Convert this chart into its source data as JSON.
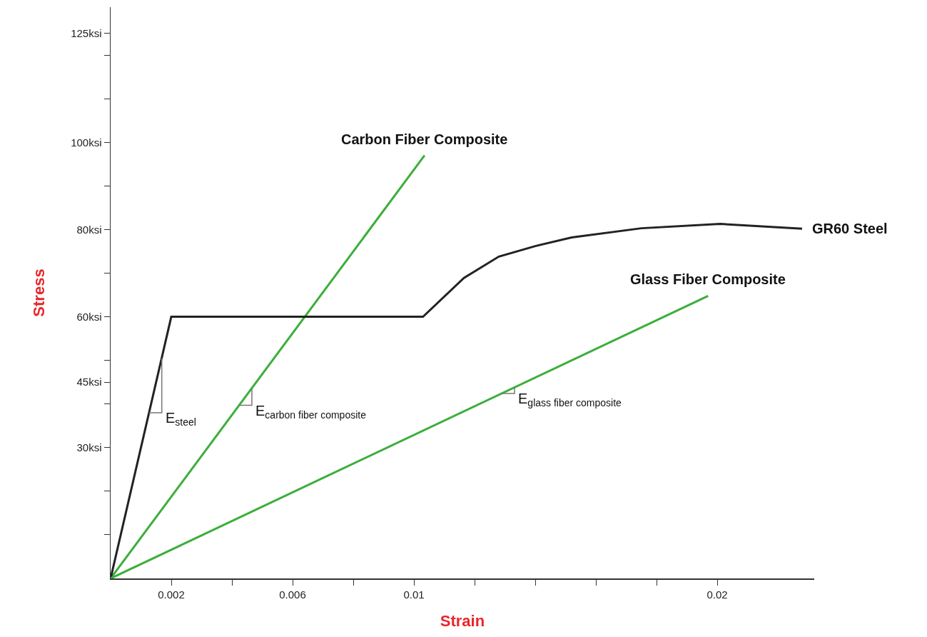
{
  "chart_data": {
    "type": "line",
    "xlabel": "Strain",
    "ylabel": "Stress",
    "xlim": [
      0,
      0.0232
    ],
    "ylim": [
      0,
      131
    ],
    "xticks": [
      {
        "value": 0.002,
        "label": "0.002"
      },
      {
        "value": 0.004,
        "label": null
      },
      {
        "value": 0.006,
        "label": "0.006"
      },
      {
        "value": 0.008,
        "label": null
      },
      {
        "value": 0.01,
        "label": "0.01"
      },
      {
        "value": 0.012,
        "label": null
      },
      {
        "value": 0.014,
        "label": null
      },
      {
        "value": 0.016,
        "label": null
      },
      {
        "value": 0.018,
        "label": null
      },
      {
        "value": 0.02,
        "label": "0.02"
      }
    ],
    "yticks": [
      {
        "value": 10,
        "label": null
      },
      {
        "value": 20,
        "label": null
      },
      {
        "value": 30,
        "label": "30ksi"
      },
      {
        "value": 40,
        "label": null
      },
      {
        "value": 45,
        "label": "45ksi"
      },
      {
        "value": 50,
        "label": null
      },
      {
        "value": 60,
        "label": "60ksi"
      },
      {
        "value": 70,
        "label": null
      },
      {
        "value": 80,
        "label": "80ksi"
      },
      {
        "value": 90,
        "label": null
      },
      {
        "value": 100,
        "label": "100ksi"
      },
      {
        "value": 110,
        "label": null
      },
      {
        "value": 120,
        "label": null
      },
      {
        "value": 125,
        "label": "125ksi"
      }
    ],
    "grid": false,
    "legend": false,
    "marker": "none",
    "line_style": "solid",
    "series": [
      {
        "name": "Carbon Fiber Composite",
        "color": "#3cae3c",
        "x": [
          0,
          0.01035
        ],
        "values": [
          0,
          97
        ]
      },
      {
        "name": "GR60 Steel",
        "color": "#222222",
        "x": [
          0,
          0.002,
          0.0103,
          0.01165,
          0.0128,
          0.014,
          0.0152,
          0.0175,
          0.0201,
          0.0228
        ],
        "values": [
          0,
          60,
          60,
          68.9,
          73.8,
          76.2,
          78.2,
          80.3,
          81.3,
          80.2
        ]
      },
      {
        "name": "Glass Fiber Composite",
        "color": "#3cae3c",
        "x": [
          0,
          0.0197
        ],
        "values": [
          0,
          64.8
        ]
      }
    ],
    "annotations": [
      {
        "text": "E$_{steel}$",
        "x": 0.00127,
        "y": 38
      },
      {
        "text": "E$_{carbon fiber composite}$",
        "x": 0.00424,
        "y": 39.7
      },
      {
        "text": "E$_{glass fiber composite}$",
        "x": 0.0129,
        "y": 42.4
      }
    ]
  }
}
